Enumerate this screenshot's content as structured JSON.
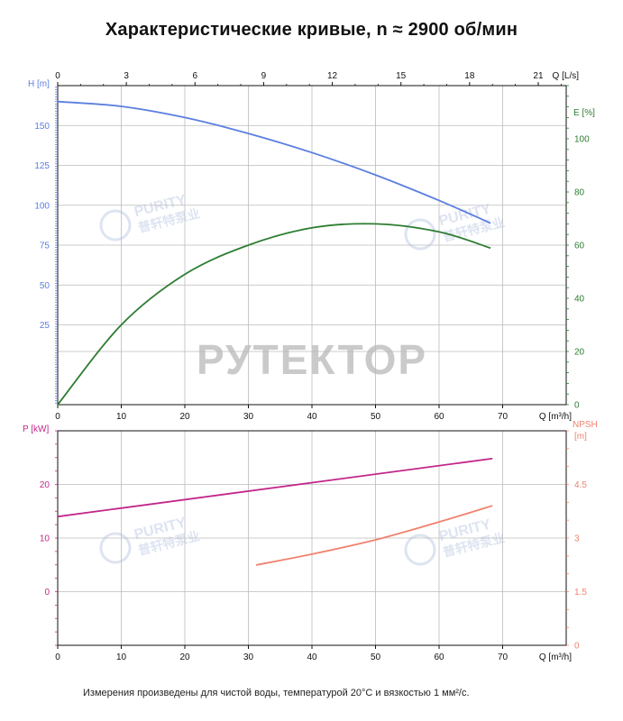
{
  "title": "Характеристические кривые, n ≈ 2900 об/мин",
  "footnote": "Измерения произведены для чистой воды, температурой 20°C и вязкостью 1 мм²/с.",
  "watermark": {
    "main": "РУТЕКТОР",
    "brand_en": "PURITY",
    "brand_cn": "普轩特泵业"
  },
  "colors": {
    "head": "#5b7fe0",
    "efficiency": "#2e7d32",
    "power": "#c2268a",
    "npsh": "#f0826e",
    "axis": "#111111",
    "grid": "#bbbbbb",
    "watermark": "#b8b8b8"
  },
  "chart_data": [
    {
      "type": "line",
      "name": "upper",
      "xlabel": "Q [m³/h]",
      "x_top_label": "Q [L/s]",
      "xlim": [
        0,
        80
      ],
      "x_ticks": [
        0,
        10,
        20,
        30,
        40,
        50,
        60,
        70
      ],
      "x_top_ticks": [
        0,
        3,
        6,
        9,
        12,
        15,
        18,
        21
      ],
      "left_axis": {
        "label": "H [m]",
        "ticks": [
          25,
          50,
          75,
          100,
          125,
          150
        ],
        "ylim": [
          -25,
          175
        ]
      },
      "right_axis": {
        "label": "E [%]",
        "ticks": [
          0,
          20,
          40,
          60,
          80,
          100
        ],
        "ylim": [
          0,
          120
        ]
      },
      "series": [
        {
          "name": "H [m]",
          "axis": "left",
          "color_key": "head",
          "x": [
            0,
            10,
            20,
            30,
            40,
            50,
            60,
            68
          ],
          "y": [
            165,
            162,
            155,
            145,
            133,
            119,
            103,
            89
          ]
        },
        {
          "name": "E [%]",
          "axis": "right",
          "color_key": "efficiency",
          "x": [
            0,
            10,
            20,
            30,
            40,
            50,
            60,
            68
          ],
          "y": [
            0,
            30,
            49,
            60,
            66.5,
            68,
            65,
            59
          ]
        }
      ]
    },
    {
      "type": "line",
      "name": "lower",
      "xlabel": "Q [m³/h]",
      "xlim": [
        0,
        80
      ],
      "x_ticks": [
        0,
        10,
        20,
        30,
        40,
        50,
        60,
        70
      ],
      "left_axis": {
        "label": "P [kW]",
        "ticks": [
          0,
          10,
          20
        ],
        "ylim": [
          -10,
          30
        ]
      },
      "right_axis": {
        "label": "NPSH [m]",
        "ticks": [
          0,
          1.5,
          3,
          4.5
        ],
        "ylim": [
          0,
          6
        ]
      },
      "series": [
        {
          "name": "P [kW]",
          "axis": "left",
          "color_key": "power",
          "x": [
            0,
            68.3
          ],
          "y": [
            14,
            24.8
          ]
        },
        {
          "name": "NPSH [m]",
          "axis": "right",
          "color_key": "npsh",
          "x": [
            31.3,
            40,
            50,
            60,
            68.3
          ],
          "y": [
            2.25,
            2.55,
            2.95,
            3.45,
            3.9
          ]
        }
      ]
    }
  ]
}
